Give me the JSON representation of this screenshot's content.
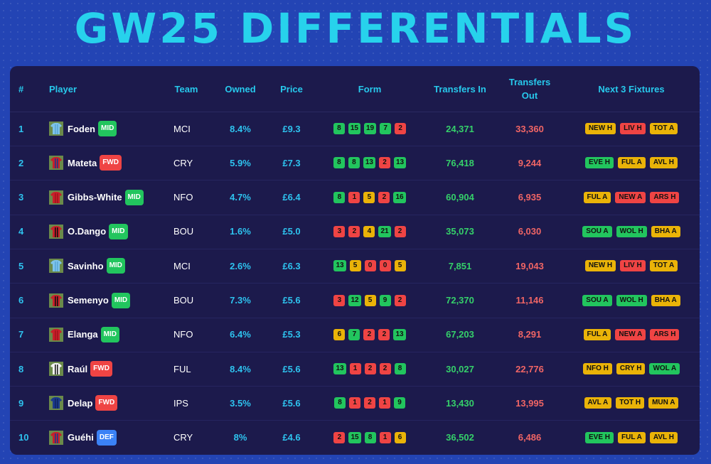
{
  "title": "GW25 DIFFERENTIALS",
  "colors": {
    "form_green": "#22c55e",
    "form_yellow": "#eab308",
    "form_red": "#ef4444",
    "pos_MID": "#22c55e",
    "pos_FWD": "#ef4444",
    "pos_DEF": "#3b82f6",
    "fix_green": "#22c55e",
    "fix_yellow": "#eab308",
    "fix_red": "#ef4444"
  },
  "columns": {
    "rank": "#",
    "player": "Player",
    "team": "Team",
    "owned": "Owned",
    "price": "Price",
    "form": "Form",
    "transfers_in": "Transfers In",
    "transfers_out": "Transfers Out",
    "fixtures": "Next 3 Fixtures"
  },
  "rows": [
    {
      "rank": "1",
      "name": "Foden",
      "pos": "MID",
      "shirt": "sky-blue",
      "team": "MCI",
      "owned": "8.4%",
      "price": "£9.3",
      "form": [
        {
          "v": "8",
          "c": "g"
        },
        {
          "v": "15",
          "c": "g"
        },
        {
          "v": "19",
          "c": "g"
        },
        {
          "v": "7",
          "c": "g"
        },
        {
          "v": "2",
          "c": "r"
        }
      ],
      "tin": "24,371",
      "tout": "33,360",
      "fixtures": [
        {
          "t": "NEW H",
          "c": "y"
        },
        {
          "t": "LIV H",
          "c": "r"
        },
        {
          "t": "TOT A",
          "c": "y"
        }
      ]
    },
    {
      "rank": "2",
      "name": "Mateta",
      "pos": "FWD",
      "shirt": "red-blue",
      "team": "CRY",
      "owned": "5.9%",
      "price": "£7.3",
      "form": [
        {
          "v": "8",
          "c": "g"
        },
        {
          "v": "8",
          "c": "g"
        },
        {
          "v": "13",
          "c": "g"
        },
        {
          "v": "2",
          "c": "r"
        },
        {
          "v": "13",
          "c": "g"
        }
      ],
      "tin": "76,418",
      "tout": "9,244",
      "fixtures": [
        {
          "t": "EVE H",
          "c": "g"
        },
        {
          "t": "FUL A",
          "c": "y"
        },
        {
          "t": "AVL H",
          "c": "y"
        }
      ]
    },
    {
      "rank": "3",
      "name": "Gibbs-White",
      "pos": "MID",
      "shirt": "red",
      "team": "NFO",
      "owned": "4.7%",
      "price": "£6.4",
      "form": [
        {
          "v": "8",
          "c": "g"
        },
        {
          "v": "1",
          "c": "r"
        },
        {
          "v": "5",
          "c": "y"
        },
        {
          "v": "2",
          "c": "r"
        },
        {
          "v": "16",
          "c": "g"
        }
      ],
      "tin": "60,904",
      "tout": "6,935",
      "fixtures": [
        {
          "t": "FUL A",
          "c": "y"
        },
        {
          "t": "NEW A",
          "c": "r"
        },
        {
          "t": "ARS H",
          "c": "r"
        }
      ]
    },
    {
      "rank": "4",
      "name": "O.Dango",
      "pos": "MID",
      "shirt": "red-black",
      "team": "BOU",
      "owned": "1.6%",
      "price": "£5.0",
      "form": [
        {
          "v": "3",
          "c": "r"
        },
        {
          "v": "2",
          "c": "r"
        },
        {
          "v": "4",
          "c": "y"
        },
        {
          "v": "21",
          "c": "g"
        },
        {
          "v": "2",
          "c": "r"
        }
      ],
      "tin": "35,073",
      "tout": "6,030",
      "fixtures": [
        {
          "t": "SOU A",
          "c": "g"
        },
        {
          "t": "WOL H",
          "c": "g"
        },
        {
          "t": "BHA A",
          "c": "y"
        }
      ]
    },
    {
      "rank": "5",
      "name": "Savinho",
      "pos": "MID",
      "shirt": "sky-blue",
      "team": "MCI",
      "owned": "2.6%",
      "price": "£6.3",
      "form": [
        {
          "v": "13",
          "c": "g"
        },
        {
          "v": "5",
          "c": "y"
        },
        {
          "v": "0",
          "c": "r"
        },
        {
          "v": "0",
          "c": "r"
        },
        {
          "v": "5",
          "c": "y"
        }
      ],
      "tin": "7,851",
      "tout": "19,043",
      "fixtures": [
        {
          "t": "NEW H",
          "c": "y"
        },
        {
          "t": "LIV H",
          "c": "r"
        },
        {
          "t": "TOT A",
          "c": "y"
        }
      ]
    },
    {
      "rank": "6",
      "name": "Semenyo",
      "pos": "MID",
      "shirt": "red-black",
      "team": "BOU",
      "owned": "7.3%",
      "price": "£5.6",
      "form": [
        {
          "v": "3",
          "c": "r"
        },
        {
          "v": "12",
          "c": "g"
        },
        {
          "v": "5",
          "c": "y"
        },
        {
          "v": "9",
          "c": "g"
        },
        {
          "v": "2",
          "c": "r"
        }
      ],
      "tin": "72,370",
      "tout": "11,146",
      "fixtures": [
        {
          "t": "SOU A",
          "c": "g"
        },
        {
          "t": "WOL H",
          "c": "g"
        },
        {
          "t": "BHA A",
          "c": "y"
        }
      ]
    },
    {
      "rank": "7",
      "name": "Elanga",
      "pos": "MID",
      "shirt": "red",
      "team": "NFO",
      "owned": "6.4%",
      "price": "£5.3",
      "form": [
        {
          "v": "6",
          "c": "y"
        },
        {
          "v": "7",
          "c": "g"
        },
        {
          "v": "2",
          "c": "r"
        },
        {
          "v": "2",
          "c": "r"
        },
        {
          "v": "13",
          "c": "g"
        }
      ],
      "tin": "67,203",
      "tout": "8,291",
      "fixtures": [
        {
          "t": "FUL A",
          "c": "y"
        },
        {
          "t": "NEW A",
          "c": "r"
        },
        {
          "t": "ARS H",
          "c": "r"
        }
      ]
    },
    {
      "rank": "8",
      "name": "Raúl",
      "pos": "FWD",
      "shirt": "white",
      "team": "FUL",
      "owned": "8.4%",
      "price": "£5.6",
      "form": [
        {
          "v": "13",
          "c": "g"
        },
        {
          "v": "1",
          "c": "r"
        },
        {
          "v": "2",
          "c": "r"
        },
        {
          "v": "2",
          "c": "r"
        },
        {
          "v": "8",
          "c": "g"
        }
      ],
      "tin": "30,027",
      "tout": "22,776",
      "fixtures": [
        {
          "t": "NFO H",
          "c": "y"
        },
        {
          "t": "CRY H",
          "c": "y"
        },
        {
          "t": "WOL A",
          "c": "g"
        }
      ]
    },
    {
      "rank": "9",
      "name": "Delap",
      "pos": "FWD",
      "shirt": "blue",
      "team": "IPS",
      "owned": "3.5%",
      "price": "£5.6",
      "form": [
        {
          "v": "8",
          "c": "g"
        },
        {
          "v": "1",
          "c": "r"
        },
        {
          "v": "2",
          "c": "r"
        },
        {
          "v": "1",
          "c": "r"
        },
        {
          "v": "9",
          "c": "g"
        }
      ],
      "tin": "13,430",
      "tout": "13,995",
      "fixtures": [
        {
          "t": "AVL A",
          "c": "y"
        },
        {
          "t": "TOT H",
          "c": "y"
        },
        {
          "t": "MUN A",
          "c": "y"
        }
      ]
    },
    {
      "rank": "10",
      "name": "Guéhi",
      "pos": "DEF",
      "shirt": "red-blue",
      "team": "CRY",
      "owned": "8%",
      "price": "£4.6",
      "form": [
        {
          "v": "2",
          "c": "r"
        },
        {
          "v": "15",
          "c": "g"
        },
        {
          "v": "8",
          "c": "g"
        },
        {
          "v": "1",
          "c": "r"
        },
        {
          "v": "6",
          "c": "y"
        }
      ],
      "tin": "36,502",
      "tout": "6,486",
      "fixtures": [
        {
          "t": "EVE H",
          "c": "g"
        },
        {
          "t": "FUL A",
          "c": "y"
        },
        {
          "t": "AVL H",
          "c": "y"
        }
      ]
    }
  ]
}
